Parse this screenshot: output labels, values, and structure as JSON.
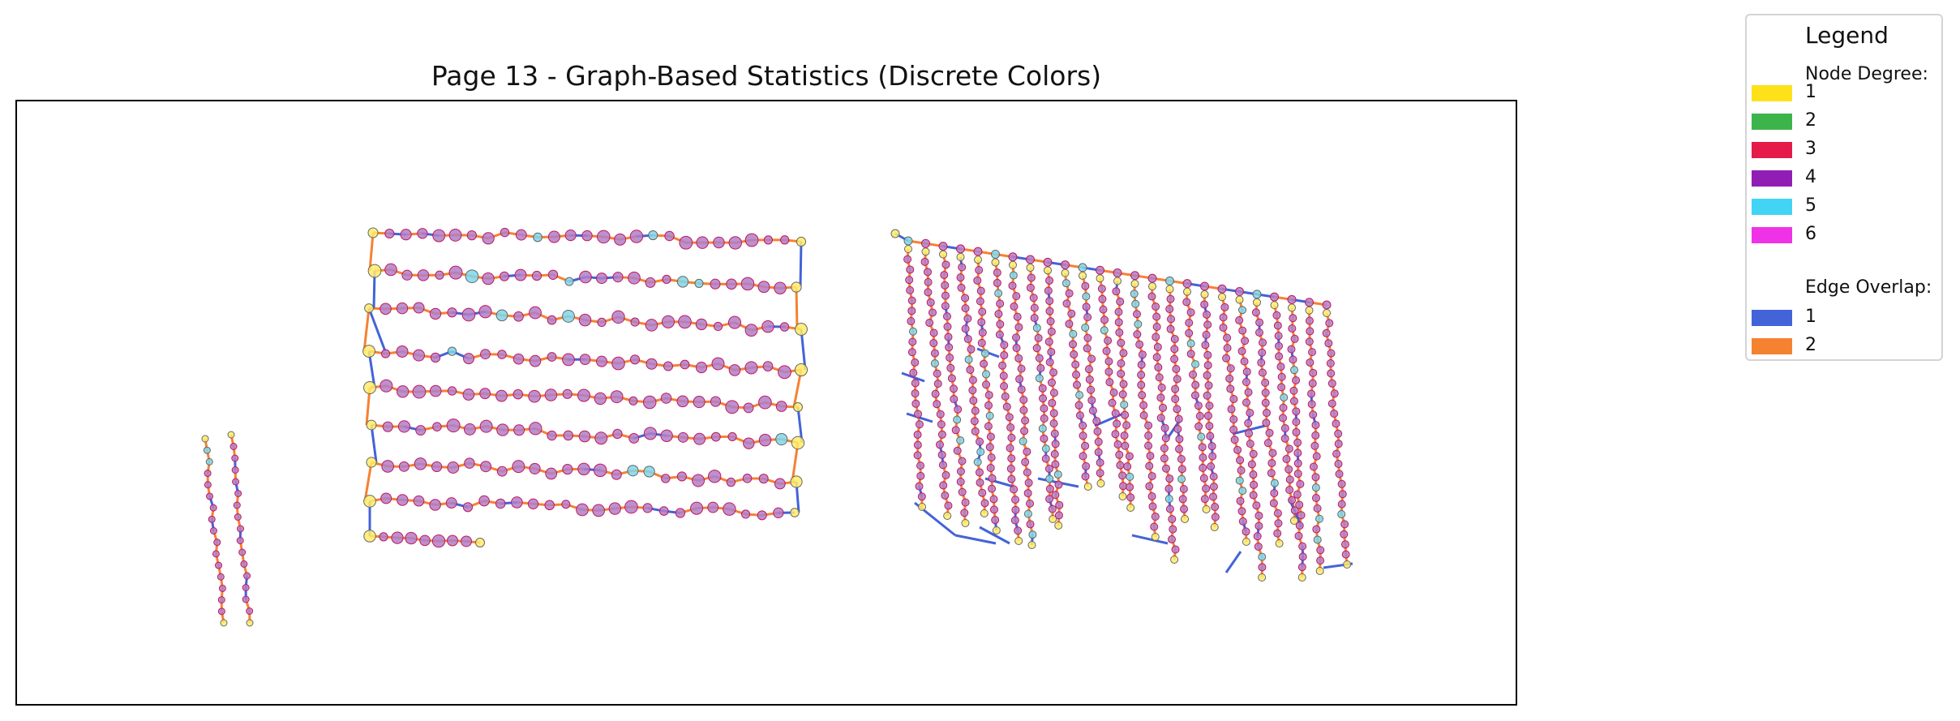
{
  "title": "Page 13 - Graph-Based Statistics (Discrete Colors)",
  "legend": {
    "title": "Legend",
    "node_section": "Node Degree:",
    "nodes": [
      {
        "label": "1",
        "color": "#ffe119"
      },
      {
        "label": "2",
        "color": "#3cb44b"
      },
      {
        "label": "3",
        "color": "#e6194b"
      },
      {
        "label": "4",
        "color": "#911eb4"
      },
      {
        "label": "5",
        "color": "#42d4f4"
      },
      {
        "label": "6",
        "color": "#f032e6"
      }
    ],
    "edge_section": "Edge Overlap:",
    "edges": [
      {
        "label": "1",
        "color": "#4363d8"
      },
      {
        "label": "2",
        "color": "#f58231"
      }
    ]
  }
}
